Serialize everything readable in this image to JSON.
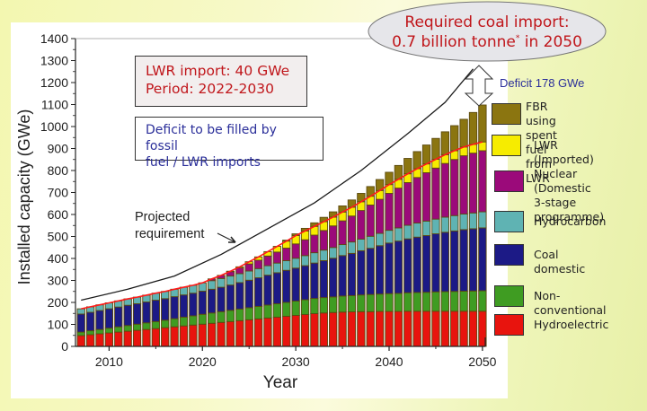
{
  "chart_data": {
    "type": "bar",
    "stacked": true,
    "xlabel": "Year",
    "ylabel": "Installed capacity (GWe)",
    "ylim": [
      0,
      1400
    ],
    "xlim": [
      2006.4,
      2050.3
    ],
    "yticks": [
      0,
      100,
      200,
      300,
      400,
      500,
      600,
      700,
      800,
      900,
      1000,
      1100,
      1200,
      1300,
      1400
    ],
    "xticks": [
      2010,
      2020,
      2030,
      2040,
      2050
    ],
    "x": [
      2007,
      2008,
      2009,
      2010,
      2011,
      2012,
      2013,
      2014,
      2015,
      2016,
      2017,
      2018,
      2019,
      2020,
      2021,
      2022,
      2023,
      2024,
      2025,
      2026,
      2027,
      2028,
      2029,
      2030,
      2031,
      2032,
      2033,
      2034,
      2035,
      2036,
      2037,
      2038,
      2039,
      2040,
      2041,
      2042,
      2043,
      2044,
      2045,
      2046,
      2047,
      2048,
      2049,
      2050
    ],
    "series": [
      {
        "name": "Hydroelectric",
        "color": "#e8140e",
        "values": [
          49,
          53,
          57,
          61,
          65,
          69,
          73,
          77,
          81,
          85,
          89,
          93,
          97,
          101,
          105,
          109,
          113,
          117,
          121,
          125,
          129,
          133,
          137,
          141,
          145,
          149,
          152,
          154,
          156,
          157,
          158,
          158,
          159,
          159,
          159,
          160,
          160,
          160,
          160,
          160,
          160,
          160,
          160,
          160
        ]
      },
      {
        "name": "Non-conventional",
        "color": "#3f9c22",
        "values": [
          16,
          18,
          20,
          22,
          24,
          26,
          28,
          30,
          32,
          34,
          37,
          40,
          42,
          45,
          47,
          49,
          51,
          53,
          55,
          57,
          59,
          61,
          63,
          65,
          67,
          69,
          70,
          71,
          73,
          74,
          76,
          78,
          79,
          81,
          82,
          84,
          85,
          86,
          88,
          89,
          90,
          91,
          92,
          93
        ]
      },
      {
        "name": "Coal domestic",
        "color": "#1c1a86",
        "values": [
          82,
          84,
          86,
          88,
          90,
          92,
          93,
          95,
          97,
          98,
          100,
          101,
          103,
          105,
          108,
          111,
          115,
          120,
          125,
          130,
          136,
          141,
          146,
          150,
          155,
          161,
          168,
          176,
          184,
          192,
          201,
          210,
          220,
          230,
          238,
          245,
          252,
          258,
          264,
          270,
          275,
          280,
          283,
          286
        ]
      },
      {
        "name": "Hydrocarbon",
        "color": "#5fb3b3",
        "values": [
          24,
          25,
          26,
          27,
          28,
          29,
          30,
          31,
          32,
          33,
          34,
          35,
          36,
          38,
          39,
          40,
          41,
          41,
          42,
          42,
          43,
          44,
          44,
          45,
          46,
          47,
          48,
          49,
          50,
          52,
          53,
          55,
          56,
          58,
          60,
          62,
          64,
          66,
          67,
          69,
          70,
          71,
          72,
          73
        ]
      },
      {
        "name": "Nuclear (Domestic 3-stage programme)",
        "color": "#9b0a7a",
        "values": [
          0,
          0,
          0,
          0,
          0,
          0,
          0,
          0,
          0,
          0,
          0,
          0,
          0,
          0,
          8,
          14,
          20,
          26,
          32,
          38,
          44,
          50,
          57,
          65,
          72,
          80,
          89,
          98,
          108,
          118,
          130,
          142,
          155,
          168,
          181,
          194,
          207,
          220,
          232,
          244,
          255,
          265,
          272,
          278
        ]
      },
      {
        "name": "LWR (Imported)",
        "color": "#f6ec00",
        "values": [
          0,
          0,
          0,
          0,
          0,
          0,
          0,
          0,
          0,
          0,
          0,
          0,
          0,
          0,
          0,
          0,
          2,
          5,
          10,
          15,
          20,
          26,
          32,
          38,
          40,
          40,
          40,
          40,
          40,
          40,
          40,
          40,
          40,
          40,
          40,
          40,
          40,
          40,
          40,
          40,
          40,
          40,
          40,
          40
        ]
      },
      {
        "name": "FBR using spent fuel from LWR",
        "color": "#8b7510",
        "values": [
          0,
          0,
          0,
          0,
          0,
          0,
          0,
          0,
          0,
          0,
          0,
          0,
          0,
          0,
          0,
          0,
          0,
          0,
          0,
          0,
          0,
          0,
          4,
          8,
          12,
          16,
          20,
          24,
          28,
          33,
          38,
          44,
          50,
          56,
          63,
          70,
          78,
          86,
          95,
          104,
          114,
          126,
          145,
          168
        ]
      }
    ],
    "lines": [
      {
        "name": "Projected requirement",
        "color": "#1a1a1a",
        "points": [
          [
            2007,
            210
          ],
          [
            2012,
            260
          ],
          [
            2017,
            320
          ],
          [
            2022,
            418
          ],
          [
            2027,
            535
          ],
          [
            2032,
            653
          ],
          [
            2037,
            800
          ],
          [
            2042,
            968
          ],
          [
            2046,
            1110
          ],
          [
            2049,
            1262
          ]
        ]
      }
    ],
    "annotations": [
      {
        "text": "Projected\nrequirement"
      },
      {
        "text": "Deficit 178 GWe"
      }
    ]
  },
  "text_boxes": {
    "lwr_import_line1": "LWR import: 40 GWe",
    "lwr_import_line2": "Period: 2022-2030",
    "deficit_line1": "Deficit to be filled by fossil",
    "deficit_line2": "fuel / LWR imports"
  },
  "callout": {
    "line1": "Required coal import:",
    "line2a": "0.7 billion tonne",
    "line2_sup": "*",
    "line2b": " in 2050"
  },
  "deficit_label": "Deficit 178 GWe",
  "projected_label_1": "Projected",
  "projected_label_2": "requirement",
  "legend": [
    {
      "label": "FBR using spent\nfuel from LWR",
      "color": "#8b7510"
    },
    {
      "label": "LWR (Imported)",
      "color": "#f6ec00"
    },
    {
      "label": "Nuclear (Domestic\n3-stage programme)",
      "color": "#9b0a7a"
    },
    {
      "label": "Hydrocarbon",
      "color": "#5fb3b3"
    },
    {
      "label": "Coal domestic",
      "color": "#1c1a86"
    },
    {
      "label": "Non-conventional",
      "color": "#3f9c22"
    },
    {
      "label": "Hydroelectric",
      "color": "#e8140e"
    }
  ],
  "frame_colors": {
    "bar_outline": "#5c4a10",
    "stack_top_line": "#ff1a1a"
  }
}
